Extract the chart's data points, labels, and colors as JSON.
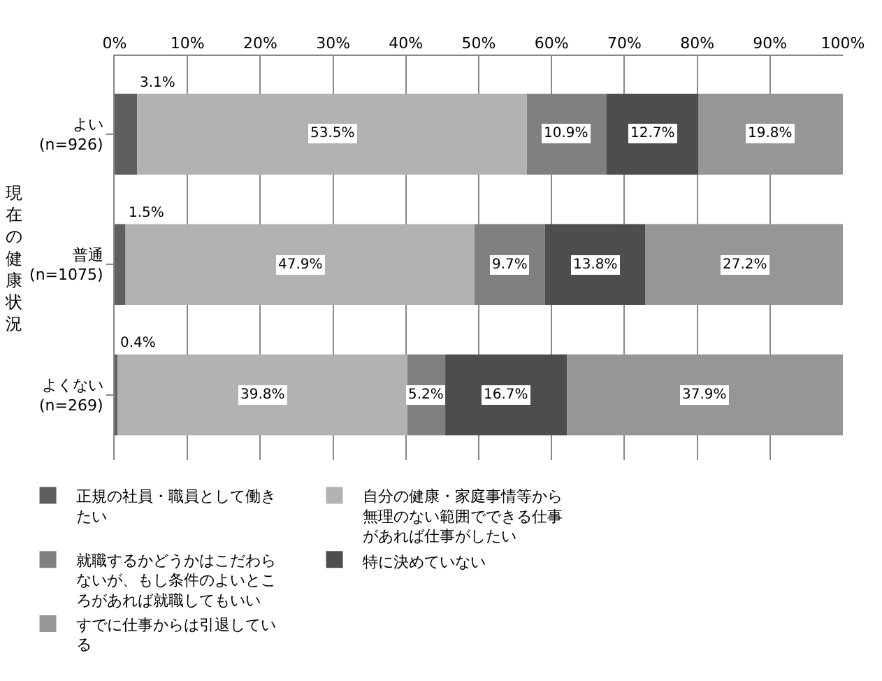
{
  "chart_data": {
    "type": "bar",
    "orientation": "horizontal",
    "stacked": true,
    "ylabel": "現在の健康状況",
    "categories": [
      "よい\n(n=926)",
      "普通\n(n=1075)",
      "よくない\n(n=269)"
    ],
    "series": [
      {
        "name": "正規の社員・職員として働きたい",
        "color": "#5f5f5f",
        "values": [
          3.1,
          1.5,
          0.4
        ],
        "value_labels": [
          "3.1%",
          "1.5%",
          "0.4%"
        ]
      },
      {
        "name": "自分の健康・家庭事情等から無理のない範囲でできる仕事があれば仕事がしたい",
        "color": "#b2b2b2",
        "values": [
          53.5,
          47.9,
          39.8
        ],
        "value_labels": [
          "53.5%",
          "47.9%",
          "39.8%"
        ]
      },
      {
        "name": "就職するかどうかはこだわらないが、もし条件のよいところがあれば就職してもいい",
        "color": "#808080",
        "values": [
          10.9,
          9.7,
          5.2
        ],
        "value_labels": [
          "10.9%",
          "9.7%",
          "5.2%"
        ]
      },
      {
        "name": "特に決めていない",
        "color": "#4d4d4d",
        "values": [
          12.7,
          13.8,
          16.7
        ],
        "value_labels": [
          "12.7%",
          "13.8%",
          "16.7%"
        ]
      },
      {
        "name": "すでに仕事からは引退している",
        "color": "#969696",
        "values": [
          19.8,
          27.2,
          37.9
        ],
        "value_labels": [
          "19.8%",
          "27.2%",
          "37.9%"
        ]
      }
    ],
    "xlim": [
      0,
      100
    ],
    "xticks": [
      {
        "value": 0,
        "label": "0%"
      },
      {
        "value": 10,
        "label": "10%"
      },
      {
        "value": 20,
        "label": "20%"
      },
      {
        "value": 30,
        "label": "30%"
      },
      {
        "value": 40,
        "label": "40%"
      },
      {
        "value": 50,
        "label": "50%"
      },
      {
        "value": 60,
        "label": "60%"
      },
      {
        "value": 70,
        "label": "70%"
      },
      {
        "value": 80,
        "label": "80%"
      },
      {
        "value": 90,
        "label": "90%"
      },
      {
        "value": 100,
        "label": "100%"
      }
    ],
    "grid": "x",
    "legend": "bottom"
  }
}
